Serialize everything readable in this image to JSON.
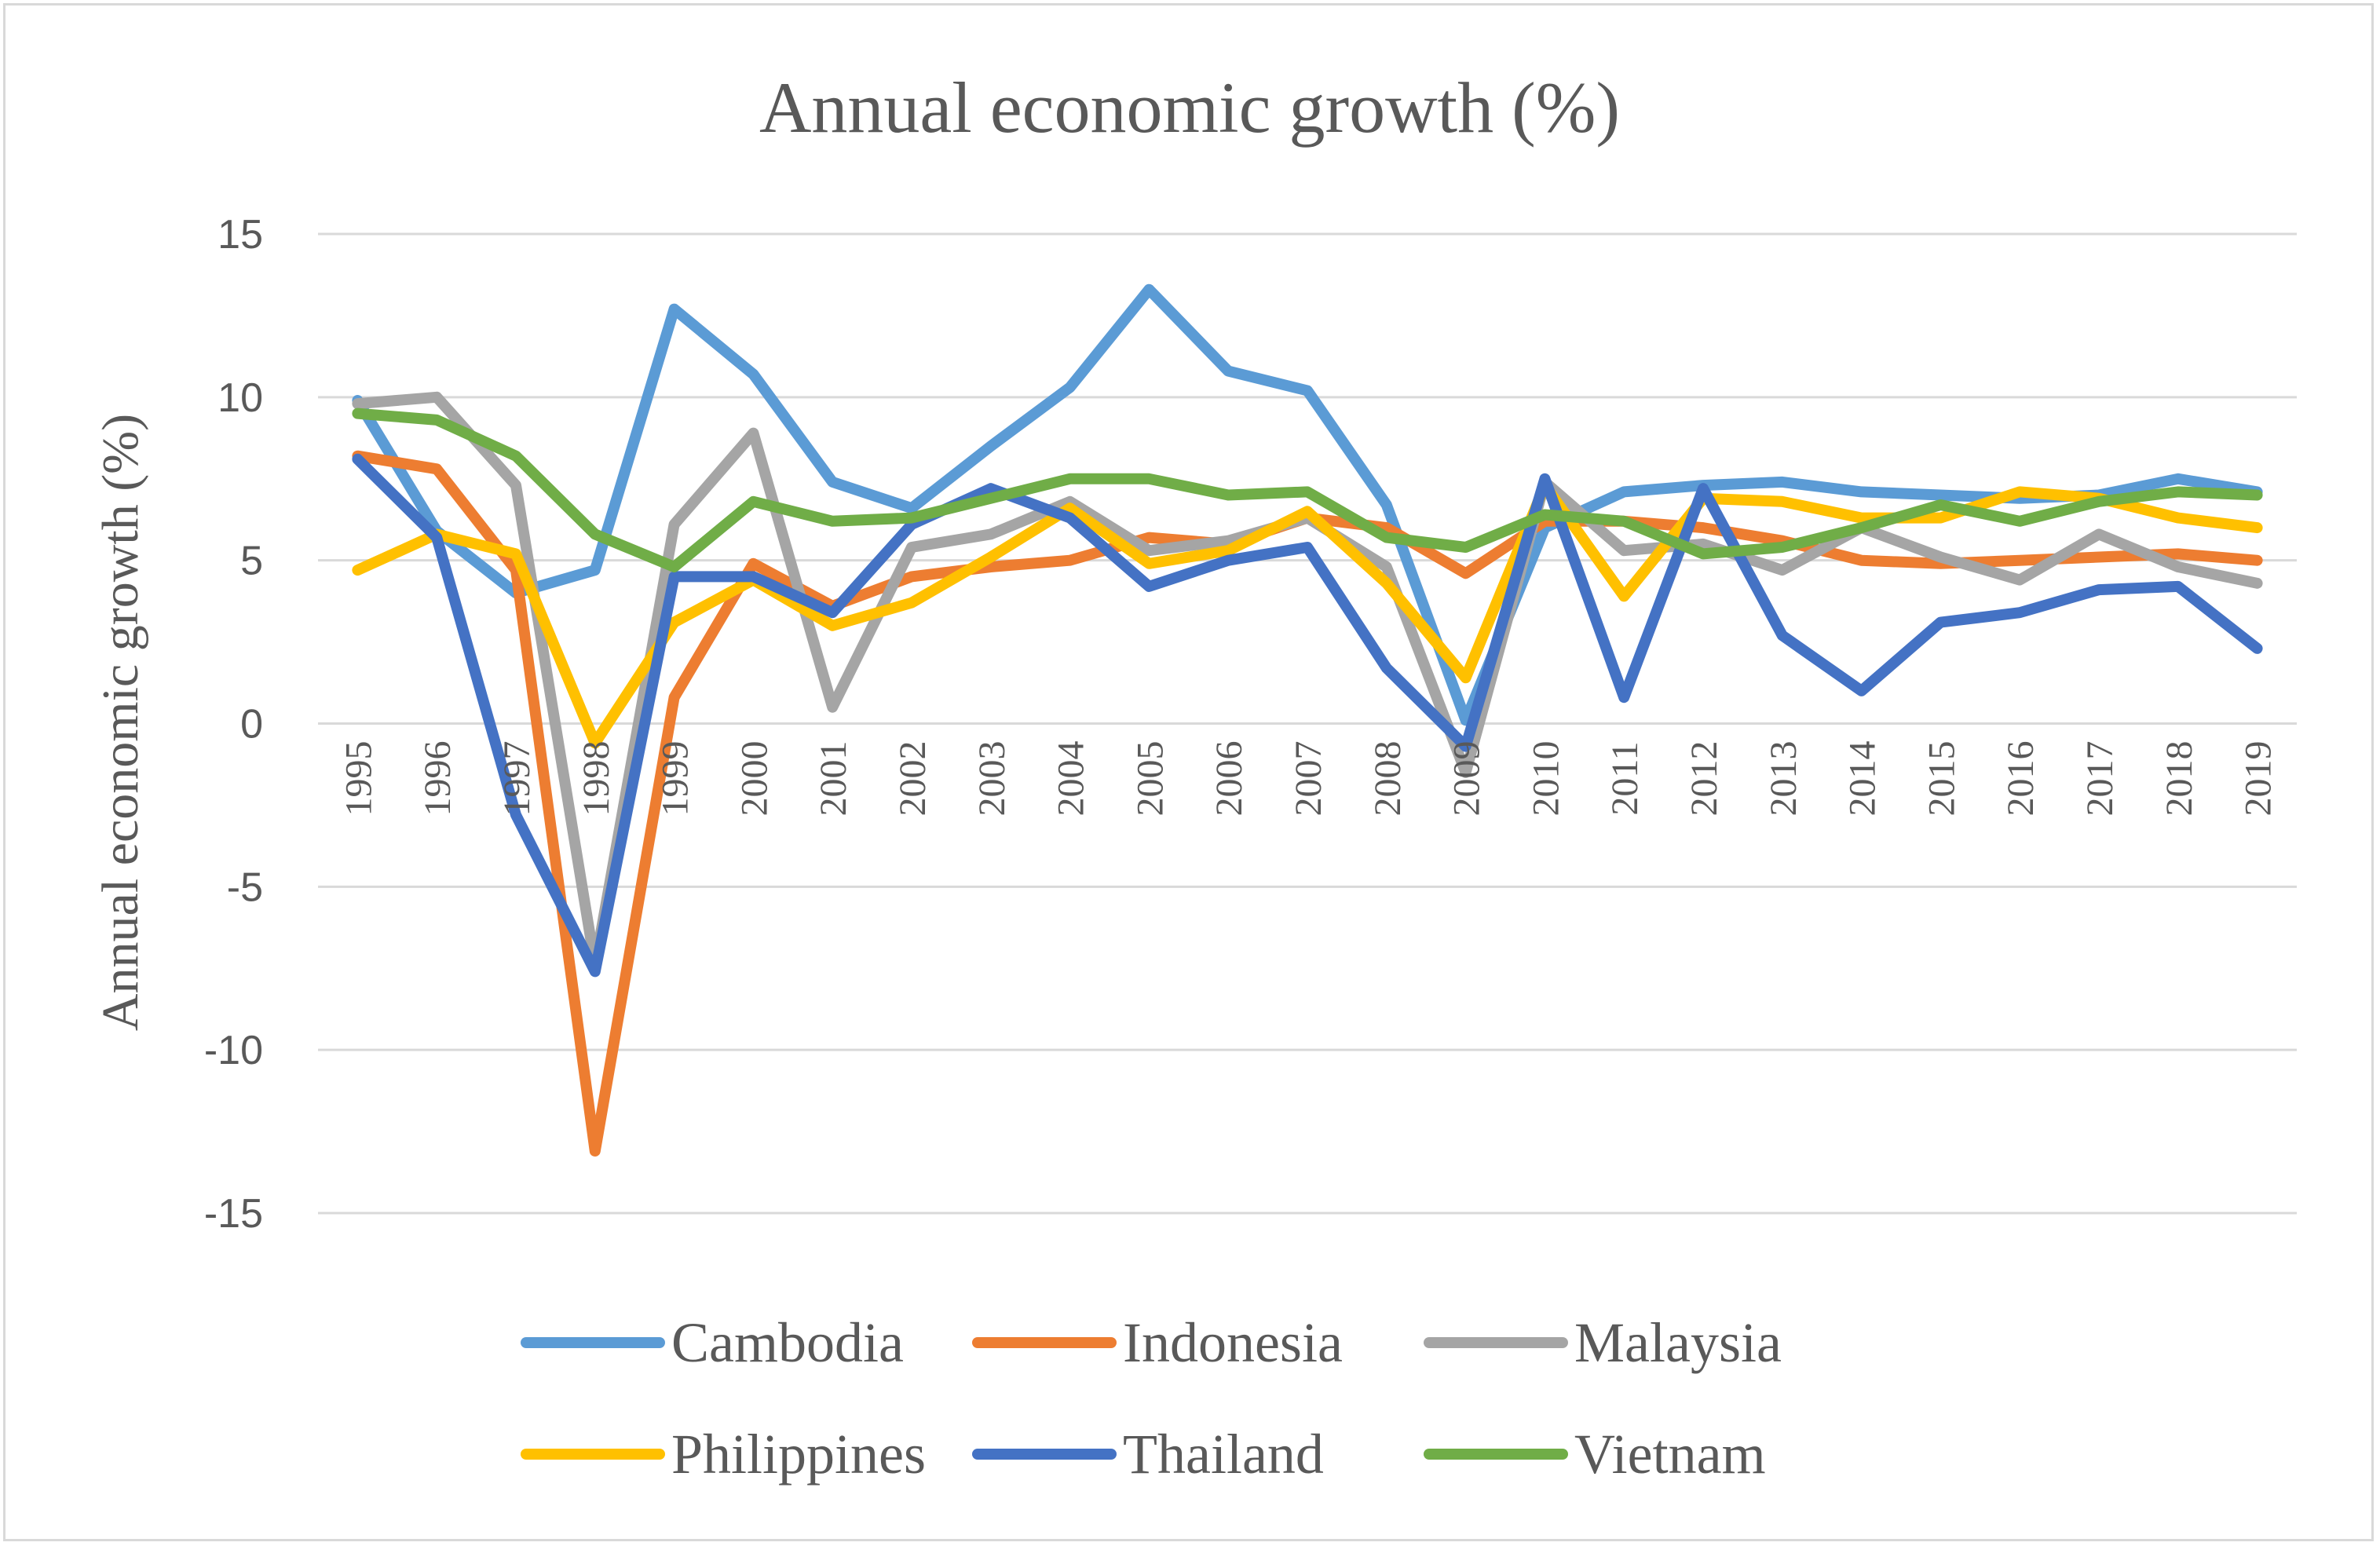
{
  "chart_data": {
    "type": "line",
    "title": "Annual economic growth (%)",
    "xlabel": "",
    "ylabel": "Annual economic growth (%)",
    "ylim": [
      -15,
      15
    ],
    "yticks": [
      15,
      10,
      5,
      0,
      -5,
      -10,
      -15
    ],
    "ytick_labels": [
      "15",
      "10",
      "5",
      "0",
      "-5",
      "-10",
      "-15"
    ],
    "grid": true,
    "legend_position": "bottom",
    "categories": [
      "1995",
      "1996",
      "1997",
      "1998",
      "1999",
      "2000",
      "2001",
      "2002",
      "2003",
      "2004",
      "2005",
      "2006",
      "2007",
      "2008",
      "2009",
      "2010",
      "2011",
      "2012",
      "2013",
      "2014",
      "2015",
      "2016",
      "2017",
      "2018",
      "2019"
    ],
    "series": [
      {
        "name": "Cambodia",
        "color": "#5b9bd5",
        "values": [
          9.9,
          5.9,
          4.0,
          4.7,
          12.7,
          10.7,
          7.4,
          6.6,
          8.5,
          10.3,
          13.3,
          10.8,
          10.2,
          6.7,
          0.1,
          6.0,
          7.1,
          7.3,
          7.4,
          7.1,
          7.0,
          6.9,
          7.0,
          7.5,
          7.1
        ]
      },
      {
        "name": "Indonesia",
        "color": "#ed7d31",
        "values": [
          8.2,
          7.8,
          4.7,
          -13.1,
          0.8,
          4.9,
          3.6,
          4.5,
          4.8,
          5.0,
          5.7,
          5.5,
          6.3,
          6.0,
          4.6,
          6.2,
          6.2,
          6.0,
          5.6,
          5.0,
          4.9,
          5.0,
          5.1,
          5.2,
          5.0
        ]
      },
      {
        "name": "Malaysia",
        "color": "#a5a5a5",
        "values": [
          9.8,
          10.0,
          7.3,
          -7.4,
          6.1,
          8.9,
          0.5,
          5.4,
          5.8,
          6.8,
          5.3,
          5.6,
          6.3,
          4.8,
          -1.5,
          7.4,
          5.3,
          5.5,
          4.7,
          6.0,
          5.1,
          4.4,
          5.8,
          4.8,
          4.3
        ]
      },
      {
        "name": "Philippines",
        "color": "#ffc000",
        "values": [
          4.7,
          5.8,
          5.2,
          -0.6,
          3.1,
          4.4,
          3.0,
          3.7,
          5.1,
          6.6,
          4.9,
          5.3,
          6.5,
          4.3,
          1.4,
          7.3,
          3.9,
          6.9,
          6.8,
          6.3,
          6.3,
          7.1,
          6.9,
          6.3,
          6.0
        ]
      },
      {
        "name": "Thailand",
        "color": "#4472c4",
        "values": [
          8.1,
          5.7,
          -2.8,
          -7.6,
          4.5,
          4.5,
          3.4,
          6.1,
          7.2,
          6.3,
          4.2,
          5.0,
          5.4,
          1.7,
          -0.7,
          7.5,
          0.8,
          7.2,
          2.7,
          1.0,
          3.1,
          3.4,
          4.1,
          4.2,
          2.3
        ]
      },
      {
        "name": "Vietnam",
        "color": "#70ad47",
        "values": [
          9.5,
          9.3,
          8.2,
          5.8,
          4.8,
          6.8,
          6.2,
          6.3,
          6.9,
          7.5,
          7.5,
          7.0,
          7.1,
          5.7,
          5.4,
          6.4,
          6.2,
          5.2,
          5.4,
          6.0,
          6.7,
          6.2,
          6.8,
          7.1,
          7.0
        ]
      }
    ]
  }
}
